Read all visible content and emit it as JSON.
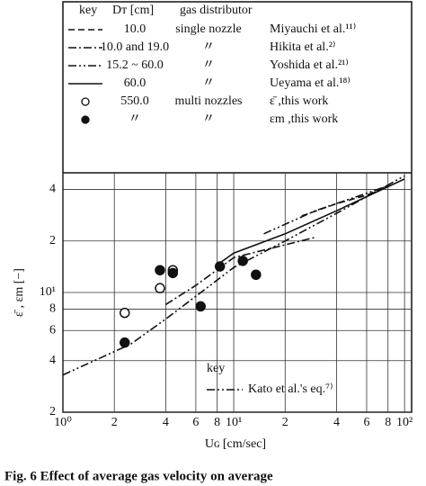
{
  "chart_data": {
    "type": "line",
    "log_x": true,
    "log_y": true,
    "grid": true,
    "legend": {
      "key_header": "key",
      "dt_header": "Dᴛ [cm]",
      "distributor_header": "gas distributor"
    },
    "inner_legend_title": "key",
    "xlabel": "Uɢ [cm/sec]",
    "ylabel": "ε̄ , εm [−]",
    "caption": "Fig. 6  Effect of average gas velocity on average",
    "xlim": [
      1,
      110
    ],
    "ylim": [
      2,
      50
    ],
    "xticks": [
      {
        "value": 1,
        "label": "10⁰"
      },
      2,
      4,
      6,
      8,
      {
        "value": 10,
        "label": "10¹"
      },
      {
        "value": 20,
        "label": "2"
      },
      {
        "value": 40,
        "label": "4"
      },
      {
        "value": 60,
        "label": "6"
      },
      {
        "value": 80,
        "label": "8"
      },
      {
        "value": 100,
        "label": "10²"
      }
    ],
    "yticks": [
      2,
      4,
      6,
      8,
      {
        "value": 10,
        "label": "10¹"
      },
      {
        "value": 20,
        "label": "2"
      },
      {
        "value": 40,
        "label": "4"
      }
    ],
    "series": [
      {
        "name": "Miyauchi et al.¹¹⁾",
        "diameter": "10.0",
        "distributor": "single nozzle",
        "style": "dash",
        "color": "#111",
        "x": [
          25,
          40,
          60,
          80
        ],
        "values": [
          28,
          33,
          37,
          42
        ]
      },
      {
        "name": "Hikita et al.²⁾",
        "diameter": "10.0 and 19.0",
        "distributor": "〃",
        "style": "dashdot",
        "color": "#111",
        "x": [
          4,
          6,
          10,
          30
        ],
        "values": [
          8.5,
          11,
          16,
          21
        ]
      },
      {
        "name": "Yoshida et al.²¹⁾",
        "diameter": "15.2 ~ 60.0",
        "distributor": "〃",
        "style": "dashdotdot",
        "color": "#111",
        "x": [
          15,
          30,
          60,
          80
        ],
        "values": [
          22,
          30,
          38,
          42
        ]
      },
      {
        "name": "Ueyama et al.¹⁸⁾",
        "diameter": "60.0",
        "distributor": "〃",
        "style": "solid",
        "color": "#111",
        "x": [
          8,
          10,
          20,
          40,
          100
        ],
        "values": [
          14.5,
          17,
          22,
          30,
          46
        ]
      },
      {
        "name": "ε̄ ,this work",
        "diameter": "550.0",
        "distributor": "multi nozzles",
        "style": "open-circle",
        "color": "#111",
        "x": [
          2.3,
          3.7,
          4.4
        ],
        "values": [
          7.6,
          10.6,
          13.5
        ]
      },
      {
        "name": "εm ,this work",
        "diameter": "〃",
        "distributor": "〃",
        "style": "filled-circle",
        "color": "#111",
        "x": [
          2.3,
          3.7,
          4.4,
          6.4,
          8.3,
          11.3,
          13.5
        ],
        "values": [
          5.1,
          13.5,
          13,
          8.3,
          14.2,
          15.3,
          12.7
        ]
      },
      {
        "name": "Kato et al.'s eq.⁷⁾",
        "style": "dashdotdot",
        "color": "#111",
        "x": [
          1,
          2.5,
          4,
          6,
          10,
          20,
          40,
          100
        ],
        "values": [
          3.3,
          5,
          7,
          9.5,
          14,
          20,
          29,
          48
        ]
      }
    ]
  }
}
